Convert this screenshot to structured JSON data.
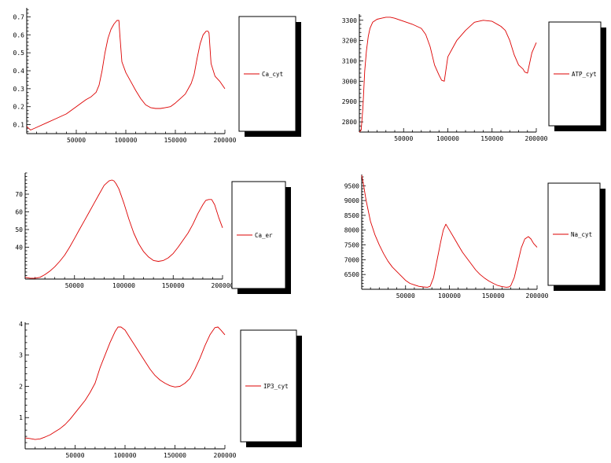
{
  "chart_data": [
    {
      "type": "line",
      "title": "",
      "xlabel": "",
      "ylabel": "",
      "xlim": [
        0,
        200000
      ],
      "ylim": [
        0.05,
        0.75
      ],
      "grid": false,
      "legend": "right",
      "x_ticks": [
        50000,
        100000,
        150000,
        200000
      ],
      "x_tick_labels": [
        "50000",
        "100000",
        "150000",
        "200000"
      ],
      "y_ticks": [
        0.1,
        0.2,
        0.3,
        0.4,
        0.5,
        0.6,
        0.7
      ],
      "y_tick_labels": [
        "0.1",
        "0.2",
        "0.3",
        "0.4",
        "0.5",
        "0.6",
        "0.7"
      ],
      "series": [
        {
          "name": "Ca_cyt",
          "color": "#dd0000",
          "x": [
            0,
            4000,
            10000,
            20000,
            30000,
            40000,
            50000,
            55000,
            60000,
            65000,
            70000,
            73000,
            76000,
            79000,
            82000,
            85000,
            88000,
            91000,
            93000,
            94000,
            96000,
            100000,
            105000,
            110000,
            115000,
            120000,
            125000,
            130000,
            135000,
            140000,
            145000,
            150000,
            155000,
            160000,
            163000,
            166000,
            169000,
            172000,
            175000,
            178000,
            181000,
            183000,
            184000,
            186000,
            190000,
            195000,
            200000
          ],
          "y": [
            0.09,
            0.07,
            0.085,
            0.11,
            0.135,
            0.16,
            0.2,
            0.22,
            0.24,
            0.255,
            0.28,
            0.32,
            0.4,
            0.5,
            0.58,
            0.63,
            0.66,
            0.68,
            0.68,
            0.6,
            0.45,
            0.39,
            0.34,
            0.29,
            0.245,
            0.21,
            0.195,
            0.19,
            0.19,
            0.195,
            0.2,
            0.22,
            0.245,
            0.27,
            0.3,
            0.33,
            0.38,
            0.47,
            0.55,
            0.6,
            0.62,
            0.62,
            0.61,
            0.44,
            0.37,
            0.34,
            0.3
          ]
        }
      ]
    },
    {
      "type": "line",
      "title": "",
      "xlabel": "",
      "ylabel": "",
      "xlim": [
        0,
        200000
      ],
      "ylim": [
        2750,
        3330
      ],
      "grid": false,
      "legend": "right",
      "x_ticks": [
        50000,
        100000,
        150000,
        200000
      ],
      "x_tick_labels": [
        "50000",
        "100000",
        "150000",
        "200000"
      ],
      "y_ticks": [
        2800,
        2900,
        3000,
        3100,
        3200,
        3300
      ],
      "y_tick_labels": [
        "2800",
        "2900",
        "3000",
        "3100",
        "3200",
        "3300"
      ],
      "series": [
        {
          "name": "ATP_cyt",
          "color": "#dd0000",
          "x": [
            0,
            2000,
            4000,
            6000,
            8000,
            10000,
            12000,
            15000,
            20000,
            25000,
            30000,
            35000,
            40000,
            50000,
            60000,
            70000,
            75000,
            80000,
            85000,
            90000,
            93000,
            96000,
            100000,
            105000,
            110000,
            120000,
            130000,
            140000,
            150000,
            160000,
            165000,
            170000,
            175000,
            180000,
            185000,
            187000,
            190000,
            195000,
            200000
          ],
          "y": [
            2750,
            2760,
            2870,
            3050,
            3150,
            3220,
            3260,
            3290,
            3305,
            3310,
            3315,
            3315,
            3310,
            3295,
            3280,
            3260,
            3230,
            3170,
            3080,
            3030,
            3005,
            3000,
            3120,
            3160,
            3200,
            3250,
            3290,
            3300,
            3295,
            3270,
            3250,
            3200,
            3130,
            3080,
            3060,
            3045,
            3040,
            3140,
            3190
          ]
        }
      ]
    },
    {
      "type": "line",
      "title": "",
      "xlabel": "",
      "ylabel": "",
      "xlim": [
        0,
        200000
      ],
      "ylim": [
        22,
        82
      ],
      "grid": false,
      "legend": "right",
      "x_ticks": [
        50000,
        100000,
        150000,
        200000
      ],
      "x_tick_labels": [
        "50000",
        "100000",
        "150000",
        "200000"
      ],
      "y_ticks": [
        40,
        50,
        60,
        70
      ],
      "y_tick_labels": [
        "40",
        "50",
        "60",
        "70"
      ],
      "series": [
        {
          "name": "Ca_er",
          "color": "#dd0000",
          "x": [
            0,
            5000,
            10000,
            15000,
            20000,
            25000,
            30000,
            35000,
            40000,
            45000,
            50000,
            55000,
            60000,
            65000,
            70000,
            75000,
            80000,
            85000,
            88000,
            90000,
            92000,
            95000,
            100000,
            105000,
            110000,
            115000,
            120000,
            125000,
            130000,
            135000,
            140000,
            145000,
            150000,
            155000,
            160000,
            165000,
            170000,
            175000,
            180000,
            183000,
            186000,
            189000,
            192000,
            196000,
            200000
          ],
          "y": [
            23,
            22.5,
            22.5,
            23,
            24.5,
            26.5,
            29,
            32,
            35.5,
            40,
            45,
            50,
            55,
            60,
            65,
            70,
            75,
            77.5,
            78,
            77.5,
            76,
            73,
            65,
            56,
            48,
            42,
            37.5,
            34.5,
            32.5,
            32,
            32.5,
            34,
            36.5,
            40,
            44,
            48,
            53,
            59,
            64,
            66.5,
            67,
            67,
            64,
            57,
            51
          ]
        }
      ]
    },
    {
      "type": "line",
      "title": "",
      "xlabel": "",
      "ylabel": "",
      "xlim": [
        0,
        200000
      ],
      "ylim": [
        6000,
        9880
      ],
      "grid": false,
      "legend": "right",
      "x_ticks": [
        50000,
        100000,
        150000,
        200000
      ],
      "x_tick_labels": [
        "50000",
        "100000",
        "150000",
        "200000"
      ],
      "y_ticks": [
        6500,
        7000,
        7500,
        8000,
        8500,
        9000,
        9500
      ],
      "y_tick_labels": [
        "6500",
        "7000",
        "7500",
        "8000",
        "8500",
        "9000",
        "9500"
      ],
      "series": [
        {
          "name": "Na_cyt",
          "color": "#dd0000",
          "x": [
            0,
            2000,
            5000,
            10000,
            15000,
            20000,
            25000,
            30000,
            35000,
            40000,
            45000,
            50000,
            55000,
            60000,
            65000,
            70000,
            75000,
            78000,
            82000,
            86000,
            90000,
            93000,
            96000,
            100000,
            105000,
            110000,
            115000,
            120000,
            125000,
            130000,
            135000,
            140000,
            145000,
            150000,
            155000,
            160000,
            165000,
            168000,
            170000,
            174000,
            178000,
            182000,
            186000,
            190000,
            193000,
            196000,
            200000
          ],
          "y": [
            9850,
            9550,
            9000,
            8300,
            7850,
            7500,
            7200,
            6950,
            6750,
            6600,
            6450,
            6300,
            6200,
            6150,
            6100,
            6080,
            6070,
            6100,
            6400,
            7000,
            7600,
            8000,
            8200,
            8000,
            7750,
            7500,
            7250,
            7050,
            6850,
            6650,
            6500,
            6380,
            6280,
            6200,
            6130,
            6090,
            6070,
            6080,
            6120,
            6400,
            6900,
            7400,
            7700,
            7780,
            7700,
            7550,
            7420
          ]
        }
      ]
    },
    {
      "type": "line",
      "title": "",
      "xlabel": "",
      "ylabel": "",
      "xlim": [
        0,
        200000
      ],
      "ylim": [
        0,
        4.05
      ],
      "grid": false,
      "legend": "right",
      "x_ticks": [
        50000,
        100000,
        150000,
        200000
      ],
      "x_tick_labels": [
        "50000",
        "100000",
        "150000",
        "200000"
      ],
      "y_ticks": [
        1,
        2,
        3,
        4
      ],
      "y_tick_labels": [
        "1",
        "2",
        "3",
        "4"
      ],
      "series": [
        {
          "name": "IP3_cyt",
          "color": "#dd0000",
          "x": [
            0,
            5000,
            10000,
            15000,
            20000,
            25000,
            30000,
            35000,
            40000,
            45000,
            50000,
            55000,
            60000,
            65000,
            70000,
            75000,
            80000,
            85000,
            90000,
            93000,
            96000,
            100000,
            105000,
            110000,
            115000,
            120000,
            125000,
            130000,
            135000,
            140000,
            145000,
            150000,
            155000,
            160000,
            165000,
            170000,
            175000,
            180000,
            185000,
            190000,
            193000,
            196000,
            200000
          ],
          "y": [
            0.35,
            0.33,
            0.3,
            0.32,
            0.38,
            0.45,
            0.55,
            0.65,
            0.78,
            0.95,
            1.15,
            1.35,
            1.55,
            1.8,
            2.1,
            2.6,
            3.0,
            3.4,
            3.75,
            3.9,
            3.9,
            3.8,
            3.55,
            3.3,
            3.05,
            2.8,
            2.55,
            2.35,
            2.2,
            2.1,
            2.02,
            1.98,
            2.0,
            2.1,
            2.25,
            2.55,
            2.9,
            3.3,
            3.65,
            3.88,
            3.9,
            3.8,
            3.65
          ]
        }
      ]
    }
  ]
}
